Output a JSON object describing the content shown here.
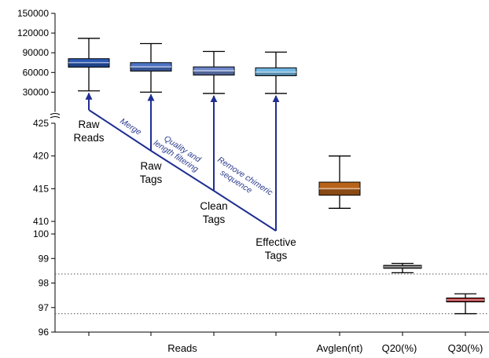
{
  "chart_data": {
    "type": "boxplot",
    "panels": [
      {
        "id": "reads",
        "ylim": [
          0,
          150000
        ],
        "yticks": [
          "150000",
          "120000",
          "90000",
          "60000",
          "30000"
        ],
        "ytick_values": [
          150000,
          120000,
          90000,
          60000,
          30000
        ],
        "boxes": [
          {
            "name": "Raw Reads",
            "color": "#2b58b4",
            "min": 32000,
            "q1": 68000,
            "median": 75000,
            "q3": 81000,
            "max": 112000
          },
          {
            "name": "Raw Tags",
            "color": "#4c72c4",
            "min": 30000,
            "q1": 62000,
            "median": 68500,
            "q3": 75000,
            "max": 104000
          },
          {
            "name": "Clean Tags",
            "color": "#6d86c8",
            "min": 28000,
            "q1": 56000,
            "median": 62500,
            "q3": 68500,
            "max": 92000
          },
          {
            "name": "Effective Tags",
            "color": "#71b6e2",
            "min": 28000,
            "q1": 55000,
            "median": 60500,
            "q3": 67000,
            "max": 91000
          }
        ]
      },
      {
        "id": "avglen",
        "ylim": [
          410,
          425
        ],
        "yticks": [
          "425",
          "420",
          "415",
          "410"
        ],
        "ytick_values": [
          425,
          420,
          415,
          410
        ],
        "boxes": [
          {
            "name": "Avglen(nt)",
            "color": "#b8631a",
            "min": 412,
            "q1": 414,
            "median": 415,
            "q3": 416,
            "max": 420
          }
        ]
      },
      {
        "id": "quality",
        "ylim": [
          96,
          100
        ],
        "yticks": [
          "100",
          "99",
          "98",
          "97",
          "96"
        ],
        "ytick_values": [
          100,
          99,
          98,
          97,
          96
        ],
        "reference_lines": [
          98.37,
          96.75
        ],
        "boxes": [
          {
            "name": "Q20(%)",
            "color": "#4a4a4a",
            "min": 98.42,
            "q1": 98.6,
            "median": 98.66,
            "q3": 98.72,
            "max": 98.8
          },
          {
            "name": "Q30(%)",
            "color": "#b01820",
            "min": 96.75,
            "q1": 97.23,
            "median": 97.31,
            "q3": 97.39,
            "max": 97.56
          }
        ]
      }
    ],
    "x_categories": [
      "Reads",
      "Avglen(nt)",
      "Q20(%)",
      "Q30(%)"
    ],
    "stage_labels": [
      {
        "line1": "Raw",
        "line2": "Reads"
      },
      {
        "line1": "Raw",
        "line2": "Tags"
      },
      {
        "line1": "Clean",
        "line2": "Tags"
      },
      {
        "line1": "Effective",
        "line2": "Tags"
      }
    ],
    "step_labels": [
      {
        "line1": "Merge"
      },
      {
        "line1": "Quality and",
        "line2": "length filtering"
      },
      {
        "line1": "Remove chimeric",
        "line2": "sequence"
      }
    ],
    "arrow_color": "#1f2e91"
  }
}
